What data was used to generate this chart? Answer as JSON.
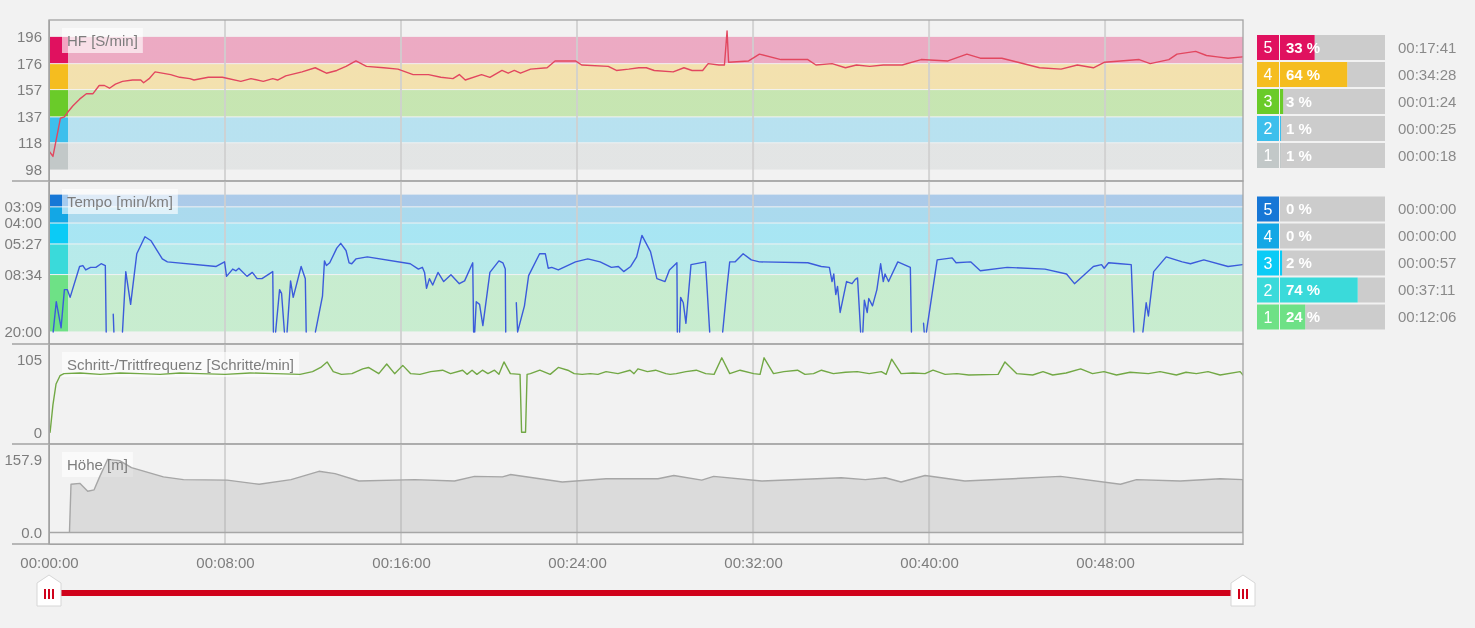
{
  "chart_data": [
    {
      "type": "line",
      "title": "HF [S/min]",
      "color": "#e2475f",
      "x": [
        0,
        0.18,
        0.52,
        0.7,
        0.83,
        1.08,
        1.39,
        1.7,
        2.0,
        2.28,
        2.52,
        2.75,
        3.02,
        3.34,
        3.8,
        4.17,
        4.3,
        4.55,
        4.82,
        5.53,
        5.94,
        6.4,
        6.59,
        7.24,
        7.88,
        8.72,
        9.18,
        9.74,
        10.17,
        10.39,
        10.76,
        11.5,
        12.1,
        12.61,
        13.08,
        13.5,
        13.95,
        14.43,
        15.21,
        15.86,
        16.55,
        17.25,
        17.81,
        18.36,
        18.65,
        18.92,
        19.66,
        20.04,
        20.59,
        20.87,
        21.15,
        21.43,
        21.89,
        22.64,
        23.0,
        23.93,
        24.21,
        25.42,
        25.79,
        26.35,
        26.81,
        27.15,
        27.51,
        28.37,
        28.86,
        29.23,
        29.71,
        29.96,
        30.45,
        30.7,
        30.82,
        30.89,
        31.8,
        32.29,
        33.27,
        34.49,
        34.86,
        35.59,
        36.2,
        36.7,
        37.31,
        37.92,
        38.78,
        39.64,
        40.86,
        41.72,
        42.33,
        43.31,
        44.04,
        45.02,
        46.0,
        46.74,
        47.47,
        47.96,
        48.7,
        49.55,
        50.05,
        50.9,
        51.27,
        52.12,
        52.61,
        53.1,
        53.59,
        54.25
      ],
      "values": [
        112,
        108,
        136,
        137,
        140,
        145,
        150,
        154,
        154,
        160,
        160,
        158,
        161,
        163,
        164,
        164,
        162,
        165,
        170,
        168,
        166,
        165,
        164,
        166,
        166,
        163,
        165,
        163,
        165,
        164,
        167,
        170,
        173,
        169,
        171,
        174,
        178,
        174,
        173,
        172,
        168,
        168,
        166,
        165,
        168,
        164,
        168,
        166,
        171,
        169,
        171,
        169,
        172,
        173,
        178,
        178,
        175,
        174,
        171,
        172,
        173,
        173,
        171,
        170,
        173,
        171,
        171,
        176,
        175,
        175,
        200,
        177,
        178,
        183,
        179,
        179,
        175,
        176,
        173,
        175,
        174,
        175,
        175,
        179,
        178,
        183,
        180,
        180,
        177,
        173,
        172,
        175,
        173,
        177,
        178,
        179,
        176,
        179,
        183,
        185,
        182,
        181,
        180,
        181
      ],
      "xlim": [
        0,
        54.27
      ],
      "xticks": [
        0,
        8,
        16,
        24,
        32,
        40,
        48
      ],
      "ylim": [
        90,
        208
      ],
      "yticks": [
        98,
        118,
        137,
        157,
        176,
        196
      ],
      "bands": [
        {
          "axis": "y",
          "from": 98,
          "to": 118,
          "color": "#c2c8c8"
        },
        {
          "axis": "y",
          "from": 118,
          "to": 137,
          "color": "#3dbfec"
        },
        {
          "axis": "y",
          "from": 137,
          "to": 157,
          "color": "#6acb29"
        },
        {
          "axis": "y",
          "from": 157,
          "to": 176,
          "color": "#f5bd1f"
        },
        {
          "axis": "y",
          "from": 176,
          "to": 196,
          "color": "#e0115f"
        }
      ],
      "grid": "x",
      "tick_labels": "y"
    },
    {
      "type": "bar",
      "orientation": "horizontal",
      "categories": [
        "5",
        "4",
        "3",
        "2",
        "1"
      ],
      "values": [
        33,
        64,
        3,
        1,
        1
      ],
      "colors": [
        "#e0115f",
        "#f5bd1f",
        "#6acb29",
        "#3dbfec",
        "#c2c8c8"
      ],
      "value_labels": [
        "33 %",
        "64 %",
        "3 %",
        "1 %",
        "1 %"
      ],
      "xlim": [
        0,
        100
      ],
      "annotations": [
        "00:17:41",
        "00:34:28",
        "00:01:24",
        "00:00:25",
        "00:00:18"
      ],
      "tick_labels": "y"
    },
    {
      "type": "line",
      "title": "Tempo [min/km]",
      "color": "#3b5bdb",
      "log": "y",
      "x": [
        0.19,
        0.33,
        0.55,
        0.7,
        0.83,
        0.96,
        1.39,
        1.54,
        1.67,
        1.89,
        2.13,
        2.37,
        2.56,
        2.6,
        2.76,
        2.92,
        2.95,
        3.15,
        3.34,
        3.49,
        3.71,
        3.99,
        4.36,
        4.64,
        5.15,
        5.38,
        7.6,
        7.98,
        8.07,
        8.35,
        8.5,
        8.63,
        9.0,
        9.24,
        9.46,
        9.68,
        10.17,
        10.2,
        10.25,
        10.3,
        10.48,
        10.57,
        10.7,
        10.76,
        10.82,
        10.98,
        11.1,
        11.46,
        11.65,
        11.69,
        11.9,
        12.11,
        12.43,
        12.52,
        12.61,
        12.76,
        13.08,
        13.26,
        13.5,
        13.64,
        13.76,
        13.95,
        14.47,
        16.42,
        16.79,
        16.97,
        17.07,
        17.16,
        17.29,
        17.44,
        17.68,
        17.94,
        18.27,
        18.65,
        18.89,
        19.26,
        19.3,
        19.32,
        19.35,
        19.42,
        19.57,
        19.72,
        20.04,
        20.45,
        20.63,
        20.74,
        20.76,
        21.0,
        21.24,
        21.3,
        21.61,
        21.8,
        22.3,
        22.56,
        22.69,
        22.85,
        23.15,
        23.93,
        24.49,
        25.05,
        25.56,
        25.88,
        26.12,
        26.44,
        26.71,
        26.95,
        27.34,
        27.63,
        28.0,
        28.2,
        28.54,
        28.56,
        28.61,
        28.66,
        28.71,
        28.83,
        28.95,
        29.18,
        29.84,
        30.03,
        30.3,
        30.62,
        30.82,
        30.94,
        31.19,
        31.55,
        31.92,
        32.29,
        34.49,
        35.1,
        35.47,
        35.59,
        35.67,
        35.76,
        35.84,
        35.96,
        36.25,
        36.5,
        36.65,
        36.75,
        36.89,
        36.94,
        36.99,
        37.06,
        37.19,
        37.26,
        37.43,
        37.63,
        37.8,
        37.92,
        38.0,
        38.16,
        38.58,
        39.15,
        39.2,
        39.5,
        39.75,
        39.78,
        39.82,
        39.88,
        40.37,
        41.05,
        41.23,
        41.89,
        42.33,
        43.55,
        45.27,
        46.25,
        46.61,
        47.47,
        47.84,
        47.96,
        48.16,
        48.7,
        49.19,
        49.31,
        49.5,
        49.72,
        49.87,
        49.97,
        50.21,
        50.78,
        51.51,
        51.88,
        52.49,
        53.59,
        54.25
      ],
      "values": [
        20,
        12.8,
        18.8,
        10.7,
        10.7,
        12,
        7.6,
        7.5,
        8,
        7.7,
        7.7,
        7.3,
        7.5,
        20,
        null,
        15.4,
        20,
        null,
        20,
        8.2,
        13.3,
        6.3,
        4.9,
        5.2,
        6.8,
        7.1,
        7.6,
        7.1,
        8.8,
        7.9,
        8.1,
        7.8,
        8.8,
        8.3,
        9.1,
        9.1,
        8.2,
        20,
        null,
        20,
        10.7,
        11.3,
        20,
        null,
        20,
        9.4,
        12,
        7.6,
        9.1,
        20,
        null,
        20,
        11.8,
        7.0,
        7.5,
        7.2,
        5.8,
        5.4,
        6,
        7.2,
        7.3,
        6.8,
        6.6,
        7.3,
        7.9,
        7.7,
        8.3,
        10.5,
        9.1,
        10,
        8.3,
        9.5,
        8.6,
        9.8,
        9.4,
        7.2,
        20,
        null,
        20,
        12.8,
        13.3,
        18.2,
        8.3,
        7.0,
        7.2,
        7.9,
        20,
        null,
        13.0,
        20,
        13.6,
        8.7,
        6.3,
        6.3,
        7.8,
        7.7,
        8,
        7.1,
        6.8,
        7.1,
        7.7,
        7.6,
        8.2,
        7.6,
        6.6,
        4.8,
        6.1,
        9.1,
        9.5,
        8,
        7.2,
        20,
        null,
        20,
        12,
        13.0,
        17.6,
        7.4,
        7.1,
        20,
        null,
        20,
        10.2,
        7.1,
        7.1,
        6.3,
        6.9,
        7.1,
        7.2,
        7.6,
        7.7,
        9.5,
        8.5,
        11.5,
        10.2,
        15,
        9.5,
        9.8,
        9.2,
        9.0,
        20,
        null,
        20,
        12.5,
        15,
        12.2,
        13.6,
        10.7,
        7.3,
        9.5,
        8.5,
        9.5,
        7.1,
        7.7,
        20,
        null,
        17.6,
        20,
        null,
        20,
        6.9,
        6.7,
        7.2,
        7.1,
        8.1,
        7.7,
        7.9,
        8.5,
        9.8,
        7.6,
        7.4,
        7.8,
        7.2,
        7.3,
        7.4,
        20,
        null,
        20,
        13.0,
        15.8,
        8.2,
        6.6,
        7.1,
        7.3,
        6.9,
        7.6,
        7.4
      ],
      "xlim": [
        0,
        54.27
      ],
      "xticks": [
        0,
        8,
        16,
        24,
        32,
        40,
        48
      ],
      "ylim": [
        23.9,
        2.15
      ],
      "yticks": [
        {
          "value": 20,
          "label": "20:00"
        },
        {
          "value": 8.567,
          "label": "08:34"
        },
        {
          "value": 5.45,
          "label": "05:27"
        },
        {
          "value": 4,
          "label": "04:00"
        },
        {
          "value": 3.15,
          "label": "03:09"
        }
      ],
      "bands": [
        {
          "axis": "y",
          "from": 20,
          "to": 8.567,
          "color": "#6ee186"
        },
        {
          "axis": "y",
          "from": 8.567,
          "to": 5.45,
          "color": "#3adada"
        },
        {
          "axis": "y",
          "from": 5.45,
          "to": 4,
          "color": "#0bcbf6"
        },
        {
          "axis": "y",
          "from": 4,
          "to": 3.15,
          "color": "#13a7e5"
        },
        {
          "axis": "y",
          "from": 3.15,
          "to": 2.61,
          "color": "#1777d6"
        }
      ],
      "grid": "x",
      "tick_labels": "y"
    },
    {
      "type": "bar",
      "orientation": "horizontal",
      "categories": [
        "5",
        "4",
        "3",
        "2",
        "1"
      ],
      "values": [
        0,
        0,
        2,
        74,
        24
      ],
      "colors": [
        "#1777d6",
        "#13a7e5",
        "#0bcbf6",
        "#3adada",
        "#6ee186"
      ],
      "value_labels": [
        "0 %",
        "0 %",
        "2 %",
        "74 %",
        "24 %"
      ],
      "xlim": [
        0,
        100
      ],
      "annotations": [
        "00:00:00",
        "00:00:00",
        "00:00:57",
        "00:37:11",
        "00:12:06"
      ],
      "tick_labels": "y"
    },
    {
      "type": "line",
      "title": "Schritt-/Trittfrequenz [Schritte/min]",
      "color": "#72a845",
      "x": [
        0.05,
        0.18,
        0.32,
        0.5,
        0.68,
        1.41,
        2.32,
        3.23,
        4.14,
        5.05,
        5.95,
        6.86,
        8.0,
        9.14,
        10.27,
        11.41,
        11.98,
        12.35,
        12.64,
        12.92,
        13.29,
        13.77,
        14.26,
        14.52,
        14.99,
        15.35,
        15.71,
        16.08,
        16.44,
        16.86,
        17.35,
        17.89,
        18.25,
        18.8,
        19.0,
        19.23,
        19.45,
        19.7,
        19.95,
        20.25,
        20.45,
        20.68,
        20.97,
        21.41,
        21.48,
        21.66,
        21.73,
        21.88,
        22.31,
        22.78,
        23.15,
        23.58,
        23.87,
        24.23,
        24.6,
        24.95,
        25.32,
        25.86,
        26.41,
        26.59,
        26.77,
        27.2,
        27.57,
        28.04,
        28.23,
        28.51,
        28.95,
        29.42,
        29.85,
        30.23,
        30.58,
        30.94,
        31.41,
        32.03,
        32.32,
        32.5,
        32.93,
        33.4,
        34.02,
        34.36,
        34.75,
        35.11,
        35.65,
        36.2,
        36.74,
        37.28,
        37.83,
        38.05,
        38.3,
        38.73,
        39.27,
        39.82,
        40.18,
        40.73,
        41.27,
        41.81,
        43.14,
        43.45,
        43.99,
        44.71,
        45.18,
        45.62,
        46.23,
        46.89,
        47.43,
        47.95,
        48.52,
        49.14,
        49.97,
        50.5,
        51.24,
        51.68,
        52.15,
        52.68,
        53.23,
        54.14,
        54.27
      ],
      "values": [
        0,
        40,
        70,
        82,
        85,
        86,
        84,
        86,
        85,
        84,
        86,
        85,
        84,
        86,
        85,
        84,
        88,
        94,
        102,
        88,
        84,
        85,
        92,
        94,
        85,
        99,
        85,
        97,
        85,
        84,
        88,
        90,
        85,
        90,
        84,
        90,
        84,
        90,
        85,
        90,
        84,
        102,
        85,
        84,
        0,
        0,
        84,
        85,
        90,
        84,
        94,
        90,
        85,
        84,
        85,
        84,
        88,
        85,
        90,
        85,
        92,
        88,
        90,
        85,
        84,
        85,
        88,
        90,
        85,
        84,
        108,
        85,
        90,
        85,
        84,
        108,
        85,
        88,
        90,
        84,
        85,
        90,
        85,
        87,
        88,
        85,
        88,
        84,
        106,
        85,
        86,
        85,
        90,
        84,
        85,
        83,
        84,
        102,
        85,
        83,
        88,
        83,
        86,
        92,
        85,
        88,
        83,
        87,
        85,
        88,
        83,
        87,
        85,
        88,
        83,
        88,
        83
      ],
      "xlim": [
        0,
        54.27
      ],
      "xticks": [
        0,
        8,
        16,
        24,
        32,
        40,
        48
      ],
      "ylim": [
        -17,
        128
      ],
      "yticks": [
        0,
        105
      ],
      "grid": "x",
      "tick_labels": "y"
    },
    {
      "type": "area",
      "title": "Höhe [m]",
      "color": "#a6a6a6",
      "x": [
        0,
        0.93,
        1.0,
        1.4,
        1.76,
        2.05,
        2.3,
        2.67,
        3.21,
        3.75,
        5.2,
        6.11,
        8.1,
        9.55,
        11.0,
        12.27,
        13.0,
        14.09,
        16.62,
        18.43,
        19.34,
        20.61,
        20.97,
        23.33,
        25.32,
        27.68,
        28.4,
        29.67,
        30.21,
        32.39,
        36.01,
        37.1,
        38.01,
        38.73,
        39.82,
        41.63,
        45.98,
        48.7,
        49.43,
        51.42,
        53.23,
        54.27
      ],
      "values": [
        0,
        0,
        104,
        106,
        89,
        92,
        120,
        157.9,
        155,
        140,
        120,
        114,
        113,
        104,
        114,
        132,
        127,
        111,
        114,
        111,
        121,
        120,
        125,
        109,
        116,
        116,
        123,
        113,
        121,
        111,
        118,
        114,
        118,
        109,
        123,
        111,
        121,
        104,
        114,
        111,
        116,
        114
      ],
      "xlim": [
        0,
        54.27
      ],
      "xticks": [
        {
          "value": 0,
          "label": "00:00:00"
        },
        {
          "value": 8,
          "label": "00:08:00"
        },
        {
          "value": 16,
          "label": "00:16:00"
        },
        {
          "value": 24,
          "label": "00:24:00"
        },
        {
          "value": 32,
          "label": "00:32:00"
        },
        {
          "value": 40,
          "label": "00:40:00"
        },
        {
          "value": 48,
          "label": "00:48:00"
        }
      ],
      "ylim": [
        -25,
        191
      ],
      "yticks": [
        157.9,
        {
          "value": 0,
          "label": "0.0"
        }
      ],
      "grid": "x"
    }
  ]
}
